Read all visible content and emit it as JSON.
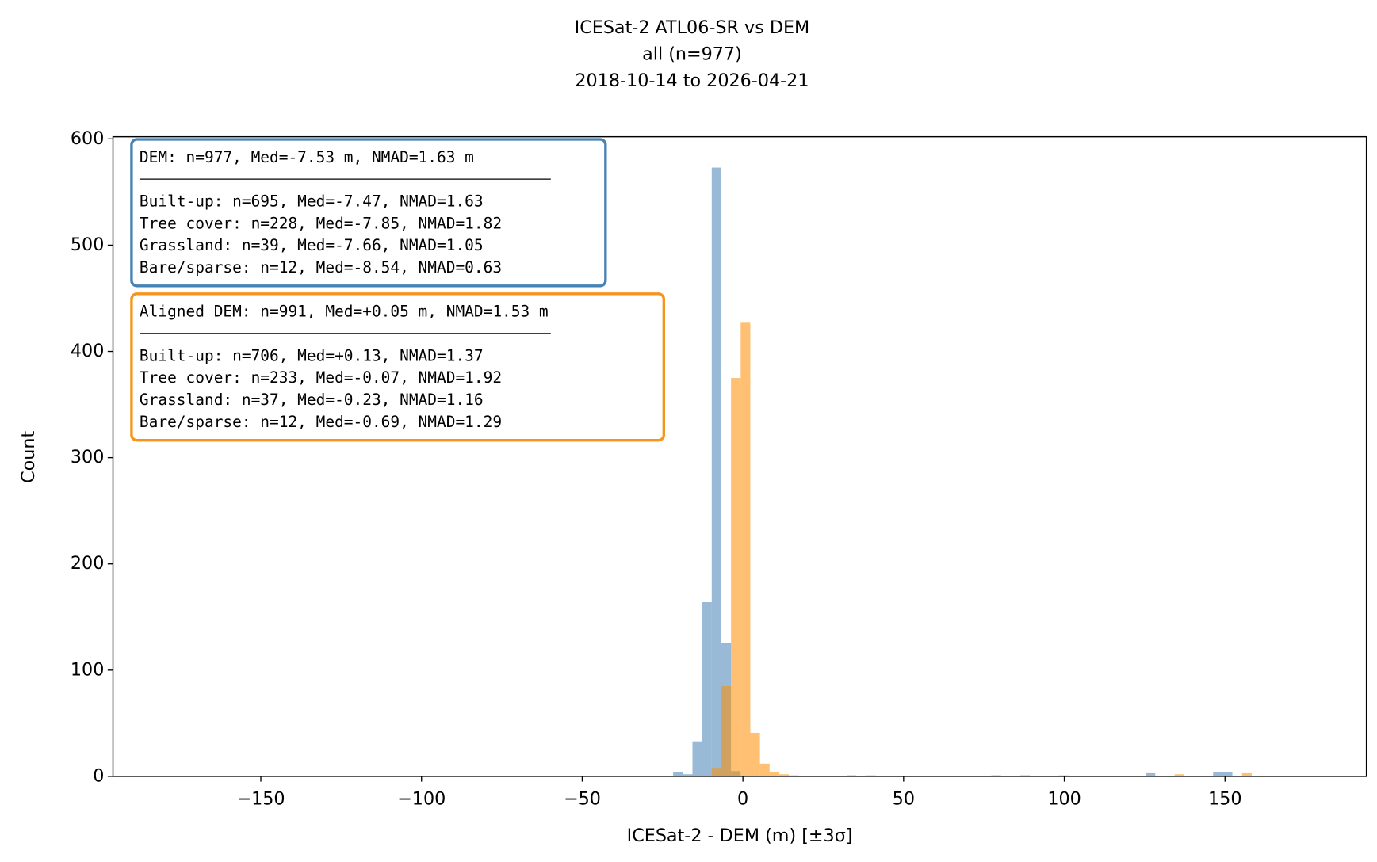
{
  "chart_data": {
    "type": "histogram",
    "title": "ICESat-2 ATL06-SR vs DEM",
    "subtitle": [
      "all (n=977)",
      "2018-10-14 to 2026-04-21"
    ],
    "x_label": "ICESat-2 - DEM (m) [±3σ]",
    "y_label": "Count",
    "xlim": [
      -196,
      194
    ],
    "ylim": [
      0,
      602
    ],
    "xticks": [
      {
        "value": -150,
        "label": "−150"
      },
      {
        "value": -100,
        "label": "−100"
      },
      {
        "value": -50,
        "label": "−50"
      },
      0,
      50,
      100,
      150
    ],
    "yticks": [
      0,
      100,
      200,
      300,
      400,
      500,
      600
    ],
    "bins": [
      -24.7,
      -21.7,
      -18.7,
      -15.7,
      -12.7,
      -9.7,
      -6.7,
      -3.7,
      -0.7,
      2.3,
      5.3,
      8.3,
      11.3,
      14.3,
      17.3,
      20.3,
      23.3,
      26.3,
      29.3,
      32.3,
      35.3,
      38.3,
      41.3,
      44.3,
      47.3,
      50.3,
      53.3,
      56.3,
      59.3,
      62.3,
      65.3,
      68.3,
      71.3,
      74.3,
      77.3,
      80.3,
      83.3,
      86.3,
      89.3,
      92.3,
      95.3,
      98.3,
      101.3,
      104.3,
      107.3,
      110.3,
      113.3,
      116.3,
      119.3,
      122.3,
      125.3,
      128.3,
      131.3,
      134.3,
      137.3,
      140.3,
      143.3,
      146.3,
      149.3,
      152.3,
      155.3,
      158.3,
      161.3,
      164.3
    ],
    "series": [
      {
        "color": "#4682b4",
        "values": [
          0,
          4,
          2,
          33,
          164,
          573,
          126,
          5,
          0,
          0,
          0,
          0,
          0,
          0,
          0,
          0,
          0,
          0,
          0,
          1,
          0,
          0,
          0,
          0,
          0,
          0,
          0,
          0,
          0,
          0,
          0,
          0,
          0,
          0,
          1,
          0,
          0,
          1,
          0,
          0,
          0,
          0,
          0,
          0,
          0,
          0,
          0,
          0,
          0,
          0,
          3,
          0,
          0,
          0,
          0,
          0,
          0,
          4,
          4,
          0,
          0,
          0,
          0
        ]
      },
      {
        "color": "#ff8c00",
        "values": [
          0,
          0,
          0,
          0,
          0,
          8,
          85,
          375,
          427,
          41,
          12,
          4,
          2,
          1,
          0,
          0,
          0,
          0,
          0,
          0,
          0,
          1,
          0,
          0,
          0,
          0,
          0,
          0,
          0,
          0,
          0,
          0,
          0,
          0,
          0,
          0,
          0,
          0,
          0,
          0,
          0,
          1,
          0,
          0,
          0,
          0,
          0,
          0,
          0,
          0,
          0,
          0,
          0,
          2,
          0,
          0,
          0,
          0,
          0,
          0,
          3,
          0,
          0
        ]
      }
    ],
    "annotations": [
      {
        "color": "#4682b4",
        "lines": [
          "DEM: n=977, Med=-7.53 m, NMAD=1.63 m",
          "Built-up: n=695, Med=-7.47, NMAD=1.63",
          "Tree cover: n=228, Med=-7.85, NMAD=1.82",
          "Grassland: n=39, Med=-7.66, NMAD=1.05",
          "Bare/sparse: n=12, Med=-8.54, NMAD=0.63"
        ]
      },
      {
        "color": "#f7941d",
        "lines": [
          "Aligned DEM: n=991, Med=+0.05 m, NMAD=1.53 m",
          "Built-up: n=706, Med=+0.13, NMAD=1.37",
          "Tree cover: n=233, Med=-0.07, NMAD=1.92",
          "Grassland: n=37, Med=-0.23, NMAD=1.16",
          "Bare/sparse: n=12, Med=-0.69, NMAD=1.29"
        ]
      }
    ]
  }
}
